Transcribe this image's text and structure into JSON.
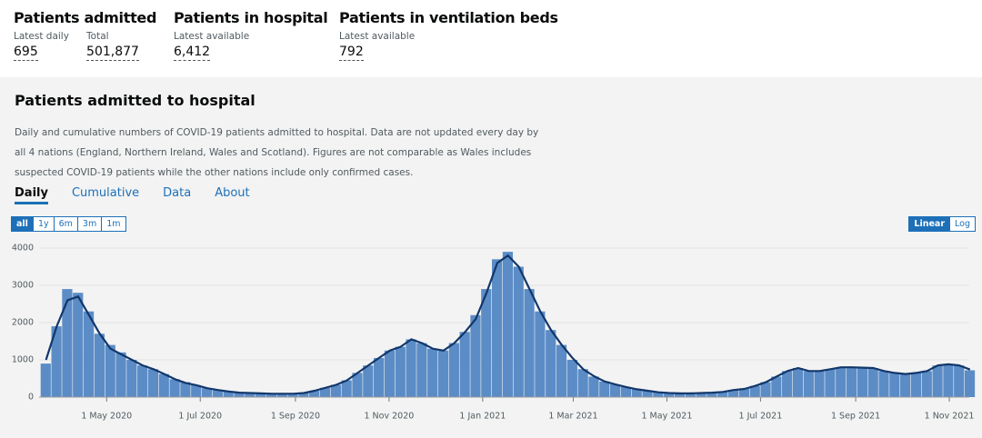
{
  "stats": [
    {
      "title": "Patients admitted",
      "items": [
        {
          "label": "Latest daily",
          "value": "695"
        },
        {
          "label": "Total",
          "value": "501,877"
        }
      ]
    },
    {
      "title": "Patients in hospital",
      "items": [
        {
          "label": "Latest available",
          "value": "6,412"
        }
      ]
    },
    {
      "title": "Patients in ventilation beds",
      "items": [
        {
          "label": "Latest available",
          "value": "792"
        }
      ]
    }
  ],
  "card": {
    "title": "Patients admitted to hospital",
    "description": [
      "Daily and cumulative numbers of COVID-19 patients admitted to hospital. Data are not updated every day by",
      "all 4 nations (England, Northern Ireland, Wales and Scotland). Figures are not comparable as Wales includes",
      "suspected COVID-19 patients while the other nations include only confirmed cases."
    ],
    "tabs": [
      "Daily",
      "Cumulative",
      "Data",
      "About"
    ],
    "range_buttons": [
      "all",
      "1y",
      "6m",
      "3m",
      "1m"
    ],
    "scale_buttons": [
      "Linear",
      "Log"
    ]
  },
  "chart_data": {
    "type": "bar",
    "x": [
      "2020-03-19",
      "2020-03-26",
      "2020-04-02",
      "2020-04-09",
      "2020-04-16",
      "2020-04-23",
      "2020-04-30",
      "2020-05-07",
      "2020-05-14",
      "2020-05-21",
      "2020-05-28",
      "2020-06-04",
      "2020-06-11",
      "2020-06-18",
      "2020-06-25",
      "2020-07-02",
      "2020-07-09",
      "2020-07-16",
      "2020-07-23",
      "2020-07-30",
      "2020-08-06",
      "2020-08-13",
      "2020-08-20",
      "2020-08-27",
      "2020-09-03",
      "2020-09-10",
      "2020-09-17",
      "2020-09-24",
      "2020-10-01",
      "2020-10-08",
      "2020-10-15",
      "2020-10-22",
      "2020-10-29",
      "2020-11-05",
      "2020-11-12",
      "2020-11-19",
      "2020-11-26",
      "2020-12-03",
      "2020-12-10",
      "2020-12-17",
      "2020-12-24",
      "2020-12-31",
      "2021-01-07",
      "2021-01-14",
      "2021-01-21",
      "2021-01-28",
      "2021-02-04",
      "2021-02-11",
      "2021-02-18",
      "2021-02-25",
      "2021-03-04",
      "2021-03-11",
      "2021-03-18",
      "2021-03-25",
      "2021-04-01",
      "2021-04-08",
      "2021-04-15",
      "2021-04-22",
      "2021-04-29",
      "2021-05-06",
      "2021-05-13",
      "2021-05-20",
      "2021-05-27",
      "2021-06-03",
      "2021-06-10",
      "2021-06-17",
      "2021-06-24",
      "2021-07-01",
      "2021-07-08",
      "2021-07-15",
      "2021-07-22",
      "2021-07-29",
      "2021-08-05",
      "2021-08-12",
      "2021-08-19",
      "2021-08-26",
      "2021-09-02",
      "2021-09-09",
      "2021-09-16",
      "2021-09-23",
      "2021-09-30",
      "2021-10-07",
      "2021-10-14",
      "2021-10-21",
      "2021-10-28",
      "2021-11-04",
      "2021-11-11"
    ],
    "series": [
      {
        "type": "bar",
        "color": "#5b8cc6",
        "values": [
          900,
          1900,
          2900,
          2800,
          2300,
          1700,
          1400,
          1200,
          1000,
          850,
          750,
          620,
          480,
          400,
          320,
          240,
          190,
          150,
          120,
          110,
          100,
          90,
          90,
          90,
          110,
          170,
          250,
          330,
          450,
          650,
          850,
          1050,
          1250,
          1350,
          1550,
          1450,
          1300,
          1250,
          1450,
          1750,
          2200,
          2900,
          3700,
          3900,
          3500,
          2900,
          2300,
          1800,
          1400,
          1000,
          750,
          550,
          420,
          340,
          270,
          210,
          170,
          130,
          110,
          100,
          100,
          110,
          120,
          140,
          190,
          220,
          300,
          400,
          550,
          700,
          780,
          700,
          700,
          750,
          800,
          800,
          790,
          780,
          700,
          650,
          620,
          650,
          700,
          850,
          880,
          850,
          720
        ]
      },
      {
        "type": "line",
        "color": "#12376b",
        "values": [
          1000,
          1900,
          2600,
          2700,
          2200,
          1700,
          1300,
          1150,
          1000,
          850,
          750,
          620,
          480,
          380,
          320,
          240,
          190,
          150,
          120,
          110,
          100,
          90,
          90,
          90,
          110,
          170,
          250,
          330,
          450,
          650,
          850,
          1050,
          1250,
          1350,
          1550,
          1450,
          1300,
          1250,
          1450,
          1750,
          2100,
          2800,
          3600,
          3800,
          3500,
          2900,
          2300,
          1800,
          1400,
          1050,
          750,
          560,
          420,
          340,
          270,
          210,
          170,
          130,
          110,
          100,
          100,
          110,
          120,
          140,
          190,
          220,
          300,
          400,
          550,
          700,
          780,
          700,
          700,
          750,
          800,
          800,
          790,
          780,
          700,
          650,
          620,
          650,
          700,
          850,
          880,
          850,
          740
        ]
      }
    ],
    "xlim": [
      "2020-03-18",
      "2021-11-14"
    ],
    "xticks": [
      {
        "value": "2020-05-01",
        "label": "1 May 2020"
      },
      {
        "value": "2020-07-01",
        "label": "1 Jul 2020"
      },
      {
        "value": "2020-09-01",
        "label": "1 Sep 2020"
      },
      {
        "value": "2020-11-01",
        "label": "1 Nov 2020"
      },
      {
        "value": "2021-01-01",
        "label": "1 Jan 2021"
      },
      {
        "value": "2021-03-01",
        "label": "1 Mar 2021"
      },
      {
        "value": "2021-05-01",
        "label": "1 May 2021"
      },
      {
        "value": "2021-07-01",
        "label": "1 Jul 2021"
      },
      {
        "value": "2021-09-01",
        "label": "1 Sep 2021"
      },
      {
        "value": "2021-11-01",
        "label": "1 Nov 2021"
      }
    ],
    "ylim": [
      0,
      4000
    ],
    "yticks": [
      0,
      1000,
      2000,
      3000,
      4000
    ],
    "grid": true
  }
}
